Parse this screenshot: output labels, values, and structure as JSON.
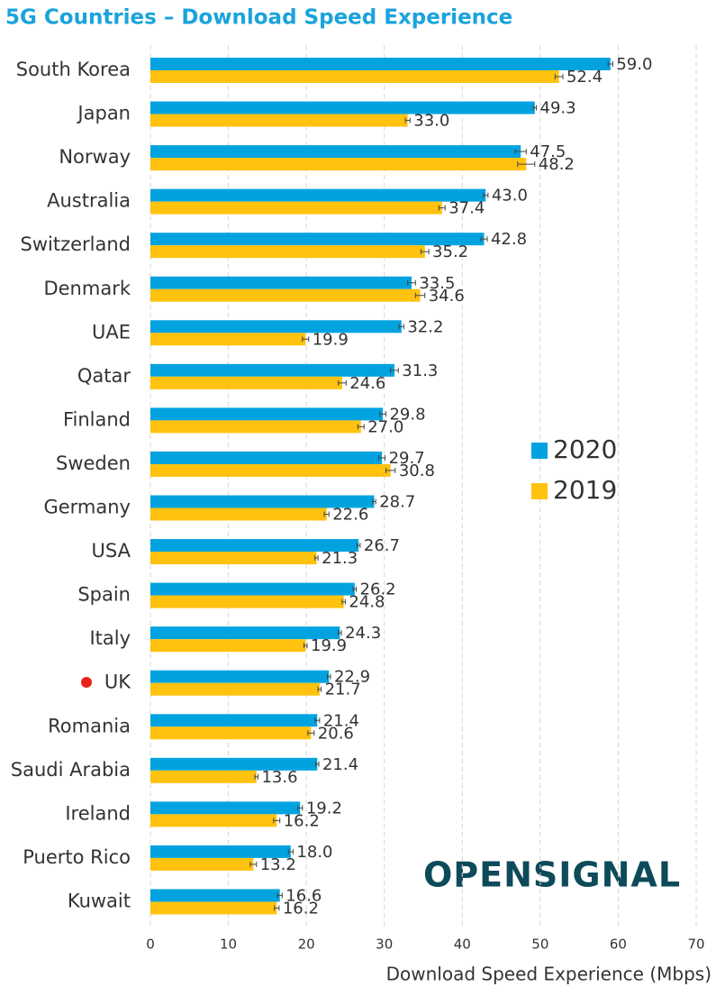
{
  "chart_data": {
    "type": "hbar",
    "title": "5G Countries – Download Speed Experience",
    "xlabel": "Download Speed Experience (Mbps)",
    "logo": "OPENSIGNAL",
    "categories": [
      "South Korea",
      "Japan",
      "Norway",
      "Australia",
      "Switzerland",
      "Denmark",
      "UAE",
      "Qatar",
      "Finland",
      "Sweden",
      "Germany",
      "USA",
      "Spain",
      "Italy",
      "UK",
      "Romania",
      "Saudi Arabia",
      "Ireland",
      "Puerto Rico",
      "Kuwait"
    ],
    "series": [
      {
        "name": "2020",
        "color": "#00a3e0",
        "values": [
          59.0,
          49.3,
          47.5,
          43.0,
          42.8,
          33.5,
          32.2,
          31.3,
          29.8,
          29.7,
          28.7,
          26.7,
          26.2,
          24.3,
          22.9,
          21.4,
          21.4,
          19.2,
          18.0,
          16.6
        ],
        "value_labels": [
          "59.0",
          "49.3",
          "47.5",
          "43.0",
          "42.8",
          "33.5",
          "32.2",
          "31.3",
          "29.8",
          "29.7",
          "28.7",
          "26.7",
          "26.2",
          "24.3",
          "22.9",
          "21.4",
          "21.4",
          "19.2",
          "18.0",
          "16.6"
        ],
        "errors": [
          0.3,
          0.2,
          0.7,
          0.3,
          0.4,
          0.5,
          0.3,
          0.5,
          0.4,
          0.4,
          0.2,
          0.2,
          0.2,
          0.2,
          0.2,
          0.3,
          0.2,
          0.3,
          0.3,
          0.3
        ]
      },
      {
        "name": "2019",
        "color": "#ffc20e",
        "values": [
          52.4,
          33.0,
          48.2,
          37.4,
          35.2,
          34.6,
          19.9,
          24.6,
          27.0,
          30.8,
          22.6,
          21.3,
          24.8,
          19.9,
          21.7,
          20.6,
          13.6,
          16.2,
          13.2,
          16.2
        ],
        "value_labels": [
          "52.4",
          "33.0",
          "48.2",
          "37.4",
          "35.2",
          "34.6",
          "19.9",
          "24.6",
          "27.0",
          "30.8",
          "22.6",
          "21.3",
          "24.8",
          "19.9",
          "21.7",
          "20.6",
          "13.6",
          "16.2",
          "13.2",
          "16.2"
        ],
        "errors": [
          0.5,
          0.3,
          1.1,
          0.4,
          0.5,
          0.6,
          0.4,
          0.5,
          0.4,
          0.6,
          0.3,
          0.2,
          0.2,
          0.2,
          0.2,
          0.4,
          0.2,
          0.4,
          0.4,
          0.3
        ]
      }
    ],
    "xlim": [
      0,
      70
    ],
    "xticks": [
      0,
      10,
      20,
      30,
      40,
      50,
      60,
      70
    ],
    "grid": true
  }
}
